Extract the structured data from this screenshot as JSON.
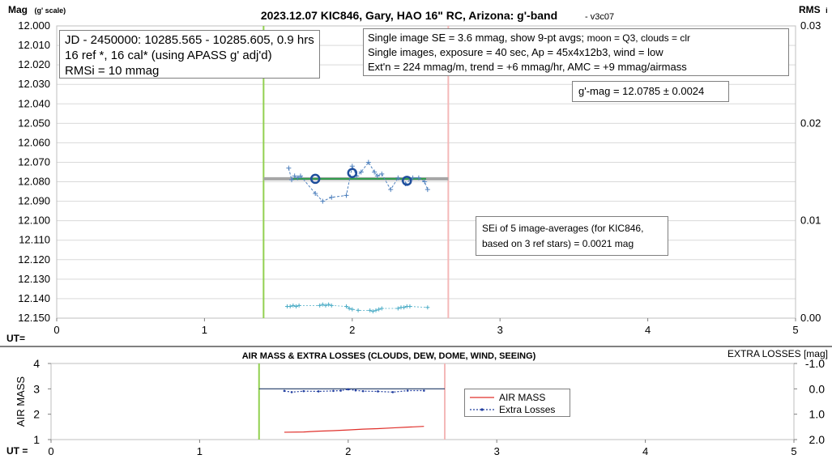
{
  "top_chart": {
    "title": "2023.12.07 KIC846, Gary, HAO 16\" RC, Arizona: g'-band",
    "version": " - v3c07",
    "y_left_label": "Mag",
    "y_left_label_suffix": "(g' scale)",
    "y_right_label": "RMS",
    "y_right_label_suffix": "i",
    "x_label": "UT=",
    "info_box": [
      "JD - 2450000: 10285.565 - 10285.605, 0.9 hrs",
      "16 ref *, 16 cal* (using APASS g' adj'd)",
      "RMSi = 10 mmag"
    ],
    "stats_box": [
      {
        "main": "Single image SE = 3.6 mmag, show  9-pt avgs; ",
        "small": "moon = Q3, clouds = clr"
      },
      {
        "main": "Single images, exposure = 40 sec, Ap = 45x4x12b3, wind = low",
        "small": ""
      },
      {
        "main": "Ext'n = 224 mmag/m, trend = +6 mmag/hr, AMC = +9 mmag/airmass",
        "small": ""
      }
    ],
    "mag_box": "g'-mag = 12.0785 ± 0.0024",
    "sei_box": [
      "SEi of 5 image-averages (for KIC846,",
      "based on 3 ref stars) = 0.0021 mag"
    ]
  },
  "bottom_chart": {
    "title": "AIR MASS & EXTRA LOSSES (CLOUDS, DEW, DOME, WIND, SEEING)",
    "y_left_label": "AIR MASS",
    "y_right_label": "EXTRA LOSSES [mag]",
    "x_label": "UT =",
    "legend": [
      "AIR MASS",
      "Extra Losses"
    ]
  },
  "chart_data": [
    {
      "type": "scatter",
      "title": "2023.12.07 KIC846, Gary, HAO 16\" RC, Arizona: g'-band",
      "xlabel": "UT=",
      "ylabel": "Mag (g' scale)",
      "xlim": [
        0,
        5
      ],
      "ylim": [
        12.15,
        12.0
      ],
      "y_ticks": [
        "12.000",
        "12.010",
        "12.020",
        "12.030",
        "12.040",
        "12.050",
        "12.060",
        "12.070",
        "12.080",
        "12.090",
        "12.100",
        "12.110",
        "12.120",
        "12.130",
        "12.140",
        "12.150"
      ],
      "x_ticks": [
        "0",
        "1",
        "2",
        "3",
        "4",
        "5"
      ],
      "y2_ticks": [
        "0.00",
        "0.01",
        "0.02",
        "0.03"
      ],
      "y2lim": [
        0,
        0.03
      ],
      "grid": true,
      "vertical_markers": [
        {
          "x": 1.4,
          "color": "#92d050"
        },
        {
          "x": 2.65,
          "color": "#f4b8b8"
        }
      ],
      "series": [
        {
          "kind": "single_images_mag",
          "color": "#4f81bd",
          "x": [
            1.57,
            1.59,
            1.61,
            1.63,
            1.65,
            1.75,
            1.8,
            1.86,
            1.96,
            2.0,
            2.03,
            2.06,
            2.11,
            2.15,
            2.17,
            2.2,
            2.26,
            2.31,
            2.36,
            2.41,
            2.45,
            2.49,
            2.51
          ],
          "y": [
            12.073,
            12.079,
            12.077,
            12.078,
            12.077,
            12.086,
            12.09,
            12.088,
            12.087,
            12.072,
            12.077,
            12.075,
            12.07,
            12.075,
            12.077,
            12.076,
            12.084,
            12.078,
            12.081,
            12.078,
            12.078,
            12.08,
            12.084
          ]
        },
        {
          "kind": "average_points",
          "color": "#1f4e9c",
          "x": [
            1.75,
            2.0,
            2.37
          ],
          "y": [
            12.0785,
            12.0755,
            12.0795
          ]
        },
        {
          "kind": "mean_mag_line",
          "color": "#a6a6a6",
          "x": [
            1.4,
            2.65
          ],
          "y": [
            12.0785,
            12.0785
          ]
        },
        {
          "kind": "trend_line",
          "color": "#2e9e4a",
          "x": [
            1.6,
            2.5
          ],
          "y": [
            12.0785,
            12.0785
          ]
        },
        {
          "kind": "rms_single_images",
          "color": "#4bacc6",
          "axis": "y2",
          "x": [
            1.56,
            1.58,
            1.6,
            1.62,
            1.64,
            1.78,
            1.8,
            1.82,
            1.84,
            1.86,
            1.96,
            1.98,
            2.0,
            2.04,
            2.12,
            2.14,
            2.16,
            2.18,
            2.2,
            2.31,
            2.33,
            2.35,
            2.37,
            2.39,
            2.51
          ],
          "y": [
            0.0012,
            0.0012,
            0.0013,
            0.0012,
            0.0013,
            0.0013,
            0.0014,
            0.0013,
            0.0014,
            0.0013,
            0.0012,
            0.001,
            0.0009,
            0.0008,
            0.0008,
            0.0007,
            0.0008,
            0.0009,
            0.001,
            0.001,
            0.0011,
            0.0011,
            0.0012,
            0.0012,
            0.0011
          ]
        }
      ]
    },
    {
      "type": "line",
      "title": "AIR MASS & EXTRA LOSSES (CLOUDS, DEW, DOME, WIND, SEEING)",
      "xlabel": "UT =",
      "ylabel": "AIR MASS",
      "y2label": "EXTRA LOSSES [mag]",
      "xlim": [
        0,
        5
      ],
      "ylim": [
        1,
        4
      ],
      "y2lim": [
        2.0,
        -1.0
      ],
      "x_ticks": [
        "0",
        "1",
        "2",
        "3",
        "4",
        "5"
      ],
      "y_ticks": [
        "1",
        "2",
        "3",
        "4"
      ],
      "y2_ticks": [
        "-1.0",
        "0.0",
        "1.0",
        "2.0"
      ],
      "vertical_markers": [
        {
          "x": 1.4,
          "color": "#92d050"
        },
        {
          "x": 2.65,
          "color": "#f4b8b8"
        }
      ],
      "reference_line": {
        "y2": 0.0,
        "x": [
          1.4,
          2.65
        ],
        "color": "#1f3864"
      },
      "series": [
        {
          "name": "AIR MASS",
          "color": "#e0302b",
          "axis": "y",
          "x": [
            1.57,
            1.7,
            1.8,
            1.9,
            2.0,
            2.1,
            2.2,
            2.3,
            2.4,
            2.51
          ],
          "y": [
            1.29,
            1.3,
            1.33,
            1.35,
            1.38,
            1.41,
            1.43,
            1.46,
            1.49,
            1.52
          ]
        },
        {
          "name": "Extra Losses",
          "color": "#1f3c9e",
          "axis": "y2",
          "x": [
            1.57,
            1.62,
            1.7,
            1.8,
            1.9,
            1.95,
            2.0,
            2.05,
            2.1,
            2.2,
            2.3,
            2.4,
            2.51
          ],
          "y": [
            0.08,
            0.13,
            0.09,
            0.1,
            0.08,
            0.07,
            0.02,
            0.06,
            0.09,
            0.1,
            0.13,
            0.07,
            0.07
          ]
        }
      ]
    }
  ]
}
